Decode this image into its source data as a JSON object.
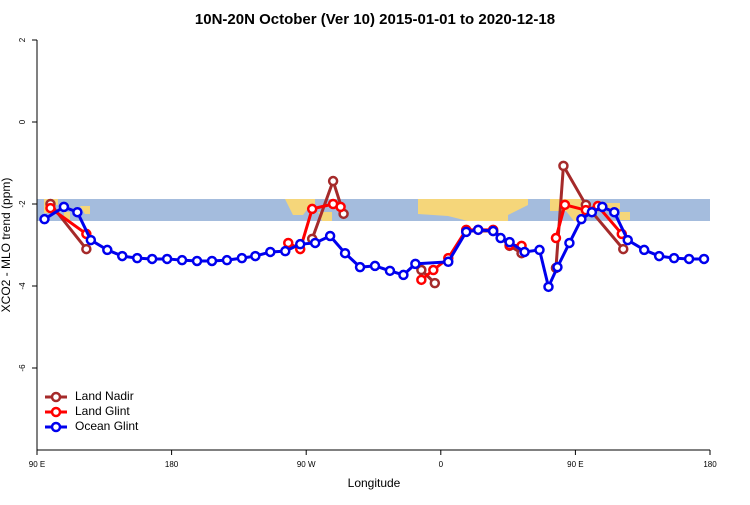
{
  "chart_data": {
    "type": "line",
    "title": "10N-20N October (Ver 10)   2015-01-01 to 2020-12-18",
    "x_label": "Longitude",
    "y_label": "XCO2 - MLO trend (ppm)",
    "xlim": [
      90,
      540
    ],
    "ylim": [
      -8,
      2
    ],
    "xticks": [
      {
        "value": 90,
        "label": "90 E"
      },
      180,
      {
        "value": 270,
        "label": "90 W"
      },
      {
        "value": 360,
        "label": "0"
      },
      {
        "value": 450,
        "label": "90 E"
      },
      {
        "value": 540,
        "label": "180"
      }
    ],
    "yticks": [
      -6,
      -4,
      -2,
      0,
      2
    ],
    "legend": "bottomleft",
    "series": [
      {
        "name": "Land Nadir",
        "color": "#a52a2a",
        "x": [
          99,
          123,
          null,
          274,
          288,
          295,
          null,
          347,
          356,
          null,
          377,
          395,
          406,
          414,
          null,
          437,
          442,
          457,
          482
        ],
        "values": [
          -2.0,
          -3.1,
          null,
          -2.85,
          -1.44,
          -2.24,
          null,
          -3.61,
          -3.93,
          null,
          -2.66,
          -2.66,
          -3.02,
          -3.2,
          null,
          -3.56,
          -1.07,
          -2.02,
          -3.1
        ]
      },
      {
        "name": "Land Glint",
        "color": "#ff0000",
        "x": [
          99,
          123,
          null,
          258,
          266,
          274,
          288,
          293,
          null,
          347,
          355,
          365,
          377,
          385,
          395,
          406,
          414,
          null,
          437,
          443,
          457,
          465,
          481
        ],
        "values": [
          -2.1,
          -2.73,
          null,
          -2.95,
          -3.1,
          -2.12,
          -2.0,
          -2.07,
          null,
          -3.85,
          -3.61,
          -3.32,
          -2.63,
          -2.63,
          -2.63,
          -3.0,
          -3.02,
          null,
          -2.83,
          -2.02,
          -2.15,
          -2.05,
          -2.73
        ]
      },
      {
        "name": "Ocean Glint",
        "color": "#0000ee",
        "x": [
          95,
          108,
          117,
          126,
          137,
          147,
          157,
          167,
          177,
          187,
          197,
          207,
          217,
          227,
          236,
          246,
          256,
          266,
          276,
          286,
          296,
          306,
          316,
          326,
          335,
          343,
          365,
          377,
          385,
          395,
          400,
          406,
          416,
          426,
          432,
          438,
          446,
          454,
          461,
          468,
          476,
          485,
          496,
          506,
          516,
          526,
          536
        ],
        "values": [
          -2.37,
          -2.07,
          -2.2,
          -2.88,
          -3.12,
          -3.27,
          -3.32,
          -3.34,
          -3.34,
          -3.37,
          -3.39,
          -3.39,
          -3.37,
          -3.32,
          -3.27,
          -3.17,
          -3.15,
          -2.98,
          -2.95,
          -2.78,
          -3.2,
          -3.54,
          -3.51,
          -3.63,
          -3.73,
          -3.46,
          -3.41,
          -2.68,
          -2.63,
          -2.66,
          -2.83,
          -2.93,
          -3.17,
          -3.12,
          -4.02,
          -3.54,
          -2.95,
          -2.37,
          -2.2,
          -2.07,
          -2.2,
          -2.88,
          -3.12,
          -3.27,
          -3.32,
          -3.34,
          -3.34
        ]
      }
    ]
  }
}
